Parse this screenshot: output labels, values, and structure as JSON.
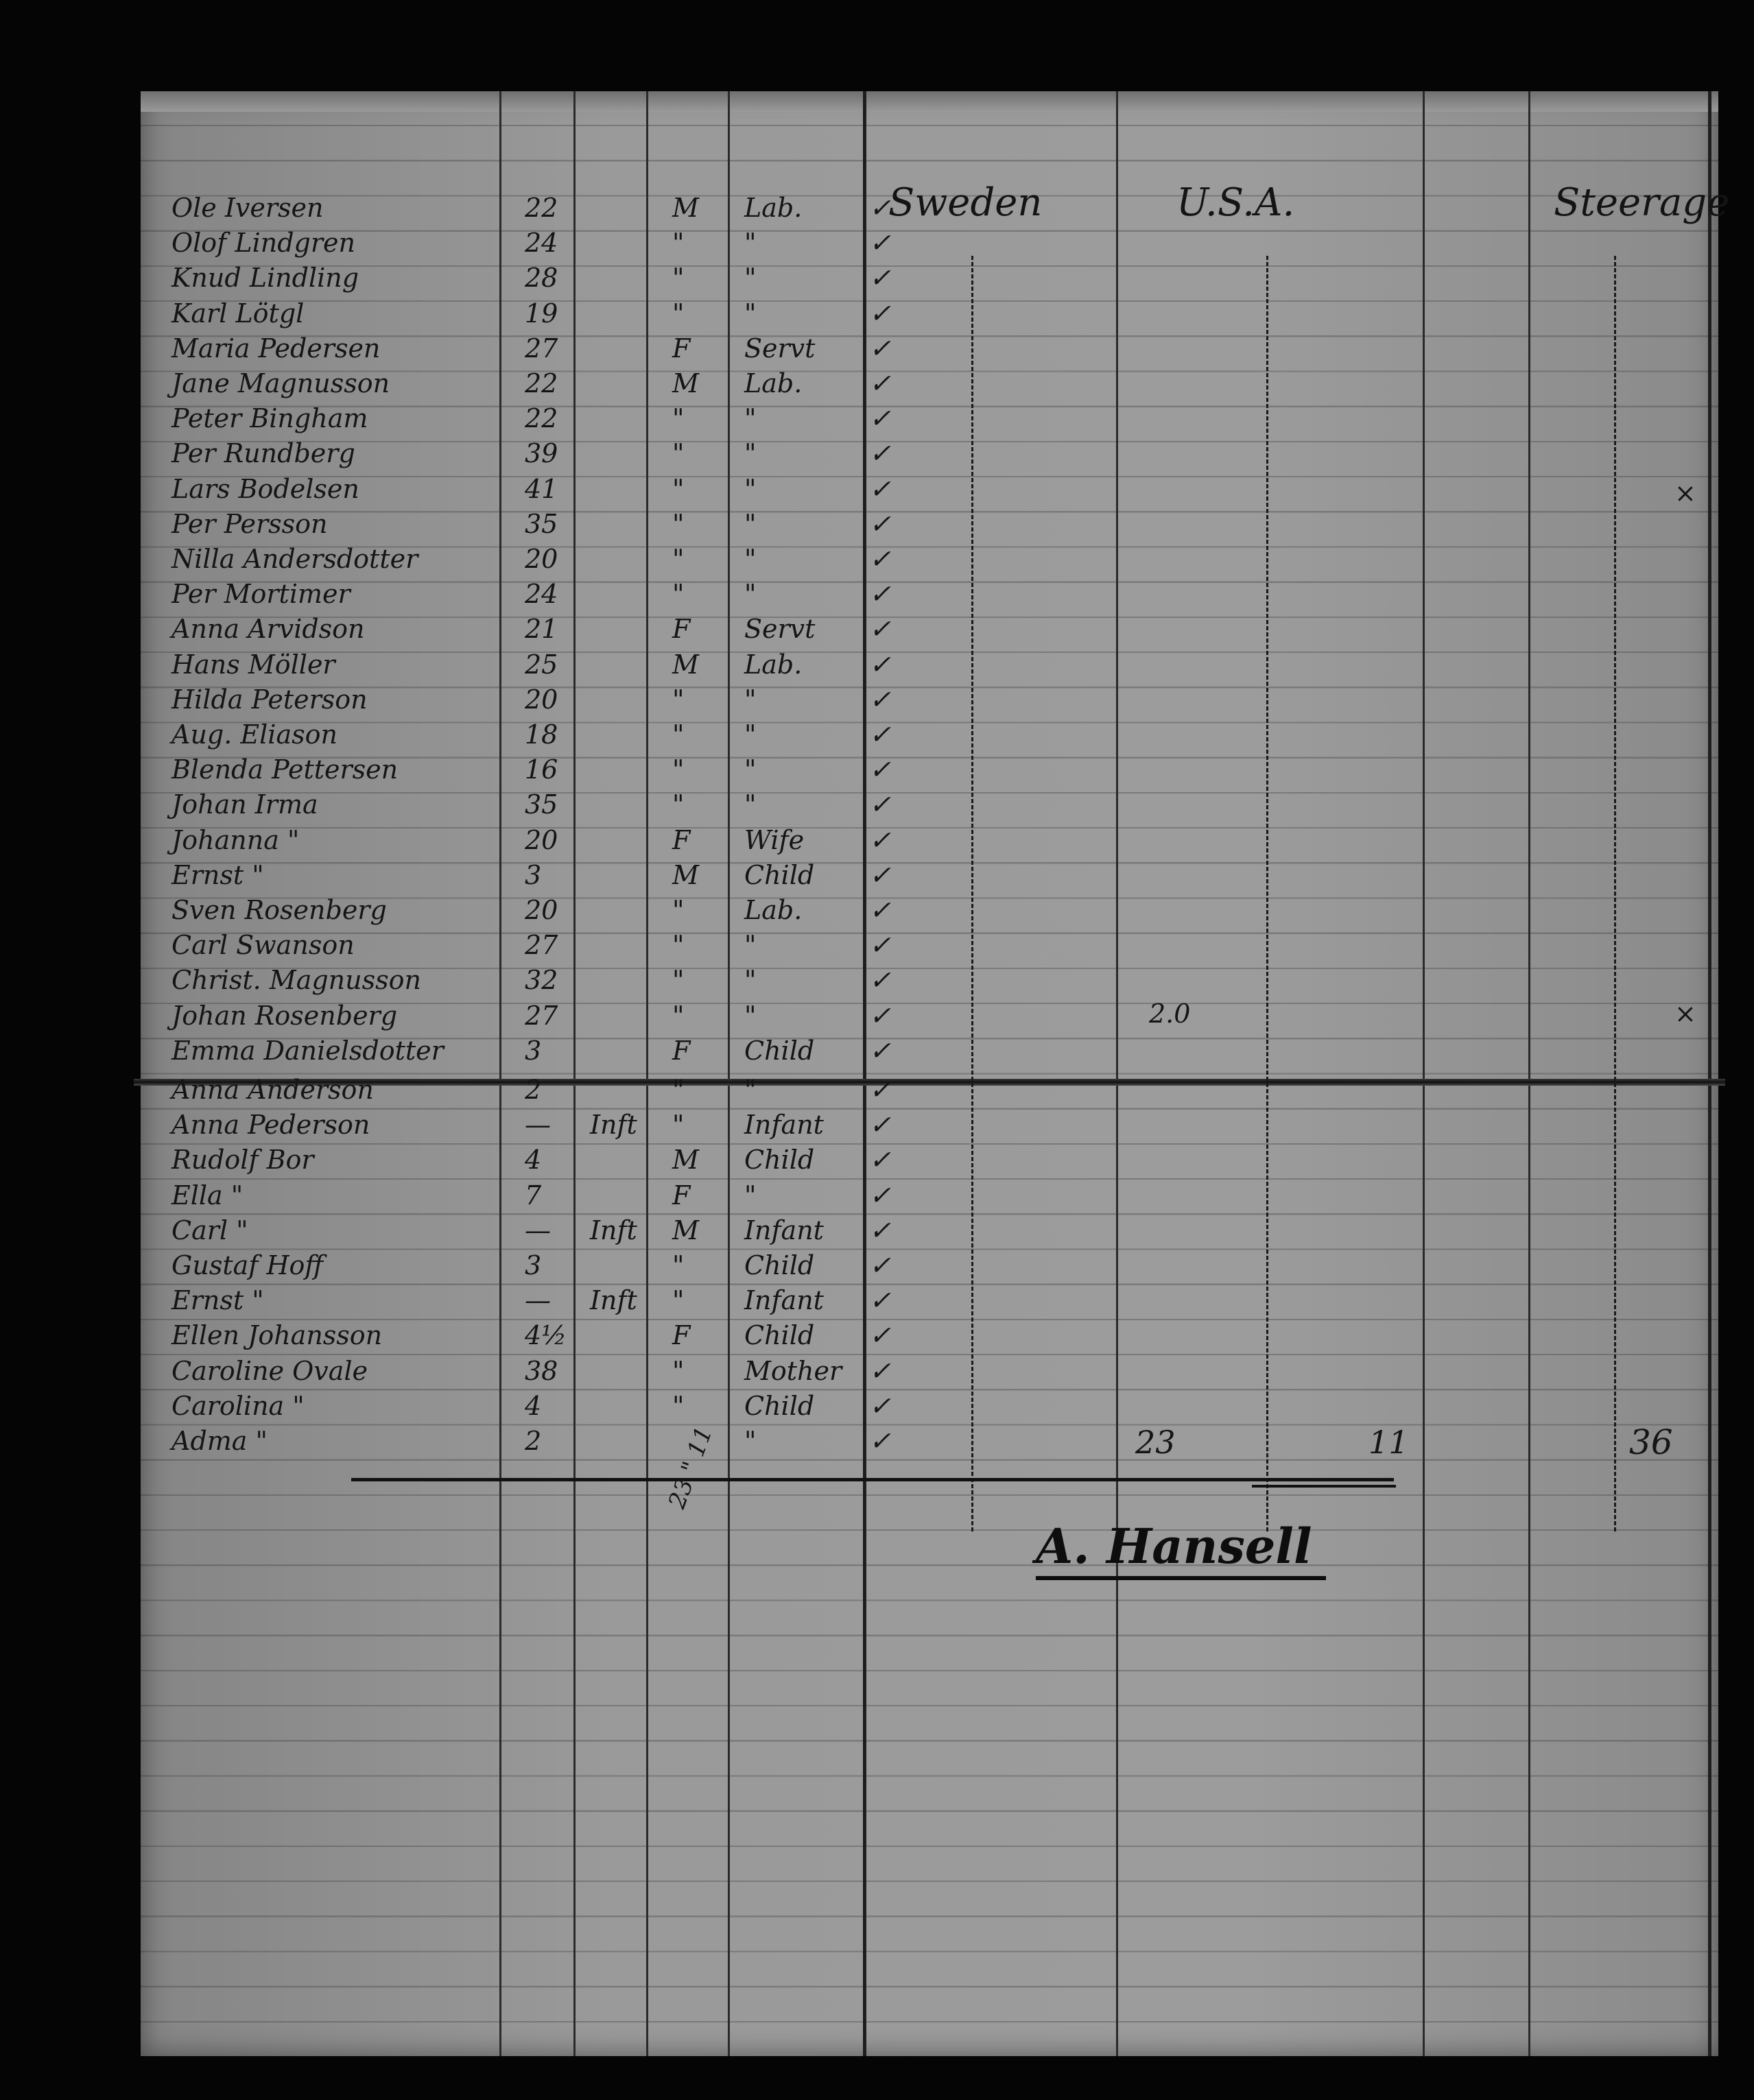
{
  "header": {
    "country_from": "Sweden",
    "destination": "U.S.A.",
    "class": "Steerage"
  },
  "rows": [
    {
      "name": "Ole Iversen",
      "age": "22",
      "infant": "",
      "sex": "M",
      "occupation": "Lab."
    },
    {
      "name": "Olof Lindgren",
      "age": "24",
      "infant": "",
      "sex": "\"",
      "occupation": "\""
    },
    {
      "name": "Knud Lindling",
      "age": "28",
      "infant": "",
      "sex": "\"",
      "occupation": "\""
    },
    {
      "name": "Karl Lötgl",
      "age": "19",
      "infant": "",
      "sex": "\"",
      "occupation": "\""
    },
    {
      "name": "Maria Pedersen",
      "age": "27",
      "infant": "",
      "sex": "F",
      "occupation": "Servt"
    },
    {
      "name": "Jane Magnusson",
      "age": "22",
      "infant": "",
      "sex": "M",
      "occupation": "Lab."
    },
    {
      "name": "Peter Bingham",
      "age": "22",
      "infant": "",
      "sex": "\"",
      "occupation": "\""
    },
    {
      "name": "Per Rundberg",
      "age": "39",
      "infant": "",
      "sex": "\"",
      "occupation": "\""
    },
    {
      "name": "Lars Bodelsen",
      "age": "41",
      "infant": "",
      "sex": "\"",
      "occupation": "\""
    },
    {
      "name": "Per Persson",
      "age": "35",
      "infant": "",
      "sex": "\"",
      "occupation": "\""
    },
    {
      "name": "Nilla Andersdotter",
      "age": "20",
      "infant": "",
      "sex": "\"",
      "occupation": "\""
    },
    {
      "name": "Per Mortimer",
      "age": "24",
      "infant": "",
      "sex": "\"",
      "occupation": "\""
    },
    {
      "name": "Anna Arvidson",
      "age": "21",
      "infant": "",
      "sex": "F",
      "occupation": "Servt"
    },
    {
      "name": "Hans Möller",
      "age": "25",
      "infant": "",
      "sex": "M",
      "occupation": "Lab."
    },
    {
      "name": "Hilda Peterson",
      "age": "20",
      "infant": "",
      "sex": "\"",
      "occupation": "\""
    },
    {
      "name": "Aug. Eliason",
      "age": "18",
      "infant": "",
      "sex": "\"",
      "occupation": "\""
    },
    {
      "name": "Blenda Pettersen",
      "age": "16",
      "infant": "",
      "sex": "\"",
      "occupation": "\""
    },
    {
      "name": "Johan Irma",
      "age": "35",
      "infant": "",
      "sex": "\"",
      "occupation": "\""
    },
    {
      "name": "Johanna \"",
      "age": "20",
      "infant": "",
      "sex": "F",
      "occupation": "Wife"
    },
    {
      "name": "Ernst \"",
      "age": "3",
      "infant": "",
      "sex": "M",
      "occupation": "Child"
    },
    {
      "name": "Sven Rosenberg",
      "age": "20",
      "infant": "",
      "sex": "\"",
      "occupation": "Lab."
    },
    {
      "name": "Carl Swanson",
      "age": "27",
      "infant": "",
      "sex": "\"",
      "occupation": "\""
    },
    {
      "name": "Christ. Magnusson",
      "age": "32",
      "infant": "",
      "sex": "\"",
      "occupation": "\""
    },
    {
      "name": "Johan Rosenberg",
      "age": "27",
      "infant": "",
      "sex": "\"",
      "occupation": "\""
    },
    {
      "name": "Emma Danielsdotter",
      "age": "3",
      "infant": "",
      "sex": "F",
      "occupation": "Child"
    },
    {
      "name": "Anna Anderson",
      "age": "2",
      "infant": "",
      "sex": "\"",
      "occupation": "\""
    },
    {
      "name": "Anna Pederson",
      "age": "—",
      "infant": "Inft",
      "sex": "\"",
      "occupation": "Infant"
    },
    {
      "name": "Rudolf Bor",
      "age": "4",
      "infant": "",
      "sex": "M",
      "occupation": "Child"
    },
    {
      "name": "Ella \"",
      "age": "7",
      "infant": "",
      "sex": "F",
      "occupation": "\""
    },
    {
      "name": "Carl \"",
      "age": "—",
      "infant": "Inft",
      "sex": "M",
      "occupation": "Infant"
    },
    {
      "name": "Gustaf Hoff",
      "age": "3",
      "infant": "",
      "sex": "\"",
      "occupation": "Child"
    },
    {
      "name": "Ernst \"",
      "age": "—",
      "infant": "Inft",
      "sex": "\"",
      "occupation": "Infant"
    },
    {
      "name": "Ellen Johansson",
      "age": "4½",
      "infant": "",
      "sex": "F",
      "occupation": "Child"
    },
    {
      "name": "Caroline Ovale",
      "age": "38",
      "infant": "",
      "sex": "\"",
      "occupation": "Mother"
    },
    {
      "name": "Carolina \"",
      "age": "4",
      "infant": "",
      "sex": "\"",
      "occupation": "Child"
    },
    {
      "name": "Adma \"",
      "age": "2",
      "infant": "",
      "sex": "",
      "occupation": "\""
    }
  ],
  "check_mark": "✓",
  "notes": {
    "row_note": "2.0",
    "cross_mark": "×"
  },
  "totals": {
    "sex_tally": "23 \" 11",
    "sweden_total": "23",
    "usa_total": "11",
    "steerage_total": "36"
  },
  "signature": "A. Hansell"
}
